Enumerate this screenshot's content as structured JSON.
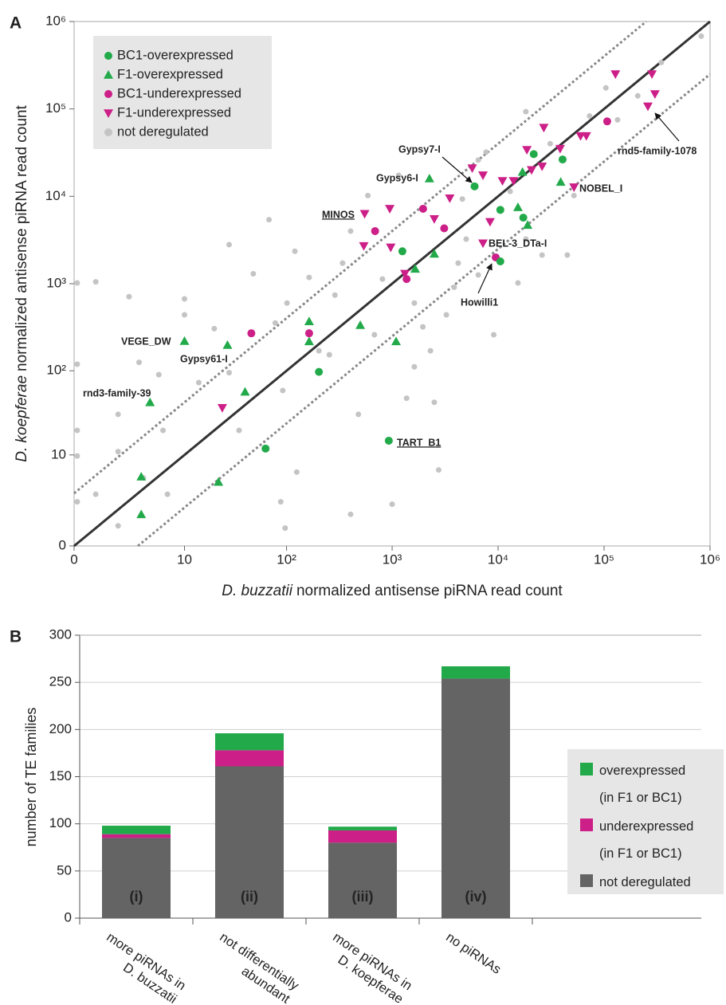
{
  "chart_data": [
    {
      "panel": "A",
      "type": "scatter",
      "xscale": "log1p",
      "yscale": "log1p",
      "xlabel_species": "D. buzzatii",
      "xlabel": "normalized antisense piRNA read count",
      "ylabel_species": "D. koepferae",
      "ylabel": "normalized antisense piRNA read count",
      "xlim": [
        0,
        1000000
      ],
      "ylim": [
        0,
        1000000
      ],
      "xticks": [
        0,
        10,
        {
          "value": 100,
          "label": "10²"
        },
        {
          "value": 1000,
          "label": "10³"
        },
        {
          "value": 10000,
          "label": "10⁴"
        },
        {
          "value": 100000,
          "label": "10⁵"
        },
        {
          "value": 1000000,
          "label": "10⁶"
        }
      ],
      "yticks": [
        0,
        10,
        {
          "value": 100,
          "label": "10²"
        },
        {
          "value": 1000,
          "label": "10³"
        },
        {
          "value": 10000,
          "label": "10⁴"
        },
        {
          "value": 100000,
          "label": "10⁵"
        },
        {
          "value": 1000000,
          "label": "10⁶"
        }
      ],
      "fold_lines": [
        0.25,
        1,
        4
      ],
      "legend": "upper left",
      "series": [
        {
          "name": "BC1-overexpressed",
          "color": "#22aa4a",
          "marker": "circle",
          "x": [
            203,
            63,
            930,
            1250,
            6000,
            10500,
            17300,
            21700,
            40600,
            10500
          ],
          "values": [
            97,
            12,
            15,
            2350,
            13000,
            7000,
            5700,
            30400,
            26400,
            1800
          ]
        },
        {
          "name": "F1-overexpressed",
          "color": "#22aa4a",
          "marker": "triangle-up",
          "x": [
            10,
            27,
            4.2,
            40,
            22,
            3.3,
            3.3,
            164,
            164,
            500,
            1090,
            1650,
            2500,
            2250,
            15400,
            19000,
            17000,
            39000
          ],
          "values": [
            220,
            198,
            43,
            57,
            4.4,
            5.2,
            1.3,
            370,
            218,
            335,
            218,
            1480,
            2200,
            16000,
            7500,
            4700,
            19000,
            14600
          ]
        },
        {
          "name": "BC1-underexpressed",
          "color": "#cc1f87",
          "marker": "circle",
          "x": [
            46,
            164,
            690,
            1960,
            3100,
            1370,
            9500,
            107000
          ],
          "values": [
            270,
            270,
            4000,
            7200,
            4300,
            1130,
            2000,
            72000
          ]
        },
        {
          "name": "F1-underexpressed",
          "color": "#cc1f87",
          "marker": "triangle-down",
          "x": [
            24,
            550,
            540,
            950,
            970,
            1320,
            2500,
            3500,
            5700,
            7200,
            7200,
            8400,
            11000,
            14000,
            18700,
            20700,
            26000,
            27000,
            38500,
            52000,
            60000,
            68000,
            128000,
            283000,
            302000,
            259000
          ],
          "values": [
            37,
            6300,
            2700,
            7200,
            2600,
            1300,
            5500,
            9500,
            21000,
            17400,
            2900,
            5100,
            15000,
            15000,
            34000,
            20000,
            22000,
            61000,
            35000,
            12700,
            49000,
            49000,
            250000,
            250000,
            148000,
            107000
          ]
        },
        {
          "name": "not deregulated",
          "color": "#c4c4c4",
          "marker": "dot",
          "x": [
            0.07,
            0.6,
            0.07,
            0.07,
            0.07,
            0.07,
            0.6,
            1.6,
            1.6,
            2.3,
            3.1,
            5.3,
            5.9,
            6.6,
            10,
            10,
            14,
            20,
            28,
            28,
            35,
            48,
            68,
            78,
            92,
            125,
            88,
            97,
            120,
            164,
            203,
            288,
            340,
            405,
            590,
            680,
            810,
            1000,
            480,
            1370,
            1620,
            1950,
            2300,
            2500,
            3250,
            3850,
            4200,
            4600,
            5000,
            6500,
            7700,
            9100,
            13000,
            15400,
            18300,
            26000,
            31000,
            45000,
            52000,
            73000,
            104000,
            134000,
            208000,
            347000,
            826000,
            101,
            255,
            1620,
            6500,
            1150,
            18300,
            2750,
            405,
            1.6,
            3.5
          ],
          "values": [
            1020,
            1050,
            119,
            20,
            9.7,
            2.2,
            2.9,
            11,
            0.7,
            710,
            125,
            90,
            20,
            2.9,
            670,
            440,
            73,
            305,
            2800,
            95,
            20,
            1300,
            5400,
            355,
            59,
            6,
            2.2,
            0.6,
            2350,
            1180,
            170,
            740,
            1720,
            4000,
            10200,
            260,
            1130,
            2,
            31,
            48,
            600,
            320,
            170,
            43,
            440,
            910,
            1720,
            9300,
            3240,
            1260,
            32000,
            260,
            11400,
            1020,
            3240,
            2130,
            40000,
            2130,
            10200,
            83000,
            174000,
            75000,
            141000,
            340000,
            680000,
            600,
            153,
            111,
            26000,
            17400,
            93000,
            6.4,
            1.3,
            31,
            5
          ]
        }
      ],
      "annotations": [
        "Gypsy7-I",
        "Gypsy6-I",
        "MINOS",
        "NOBEL_I",
        "BEL-3_DTa-I",
        "Howilli1",
        "rnd5-family-1078",
        "VEGE_DW",
        "Gypsy61-I",
        "rnd3-family-39",
        "TART_B1"
      ]
    },
    {
      "panel": "B",
      "type": "stacked_bar",
      "ylabel": "number of TE families",
      "categories": [
        "more piRNAs in\nD. buzzatii",
        "not differentially\nabundant",
        "more piRNAs in\nD. koepferae",
        "no piRNAs"
      ],
      "bar_labels": [
        "(i)",
        "(ii)",
        "(iii)",
        "(iv)"
      ],
      "ylim": [
        0,
        300
      ],
      "yticks": [
        0,
        50,
        100,
        150,
        200,
        250,
        300
      ],
      "grid": true,
      "legend": "right",
      "series": [
        {
          "name": "not deregulated",
          "color": "#646464",
          "values": [
            85,
            161,
            80,
            254
          ]
        },
        {
          "name": "underexpressed\n(in F1 or BC1)",
          "color": "#cc1f87",
          "values": [
            4,
            17,
            13,
            0
          ]
        },
        {
          "name": "overexpressed\n(in F1 or BC1)",
          "color": "#22aa4a",
          "values": [
            9,
            18,
            4,
            13
          ]
        }
      ]
    }
  ]
}
